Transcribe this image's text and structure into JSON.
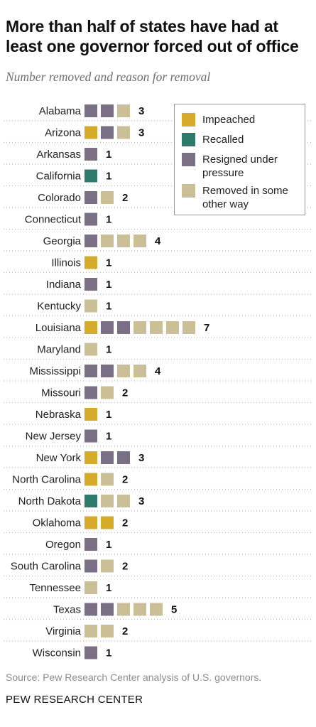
{
  "header": {
    "title": "More than half of states have had at least one governor forced out of office",
    "subtitle": "Number removed and reason for removal"
  },
  "footer": {
    "source": "Source: Pew Research Center analysis of U.S. governors.",
    "brand": "PEW RESEARCH CENTER"
  },
  "legend": {
    "items": [
      {
        "key": "impeached",
        "label": "Impeached"
      },
      {
        "key": "recalled",
        "label": "Recalled"
      },
      {
        "key": "resigned",
        "label": "Resigned under pressure"
      },
      {
        "key": "other",
        "label": "Removed in some other way"
      }
    ]
  },
  "colors": {
    "impeached": "#d6ab2b",
    "recalled": "#2e7a6b",
    "resigned": "#7a6f85",
    "other": "#cbbf98"
  },
  "chart_data": {
    "type": "bar",
    "title": "More than half of states have had at least one governor forced out of office",
    "subtitle": "Number removed and reason for removal",
    "legend_position": "top-right",
    "series_names": [
      "Impeached",
      "Recalled",
      "Resigned under pressure",
      "Removed in some other way"
    ],
    "rows": [
      {
        "state": "Alabama",
        "impeached": 0,
        "recalled": 0,
        "resigned": 2,
        "other": 1,
        "total": 3
      },
      {
        "state": "Arizona",
        "impeached": 1,
        "recalled": 0,
        "resigned": 1,
        "other": 1,
        "total": 3
      },
      {
        "state": "Arkansas",
        "impeached": 0,
        "recalled": 0,
        "resigned": 1,
        "other": 0,
        "total": 1
      },
      {
        "state": "California",
        "impeached": 0,
        "recalled": 1,
        "resigned": 0,
        "other": 0,
        "total": 1
      },
      {
        "state": "Colorado",
        "impeached": 0,
        "recalled": 0,
        "resigned": 1,
        "other": 1,
        "total": 2
      },
      {
        "state": "Connecticut",
        "impeached": 0,
        "recalled": 0,
        "resigned": 1,
        "other": 0,
        "total": 1
      },
      {
        "state": "Georgia",
        "impeached": 0,
        "recalled": 0,
        "resigned": 1,
        "other": 3,
        "total": 4
      },
      {
        "state": "Illinois",
        "impeached": 1,
        "recalled": 0,
        "resigned": 0,
        "other": 0,
        "total": 1
      },
      {
        "state": "Indiana",
        "impeached": 0,
        "recalled": 0,
        "resigned": 1,
        "other": 0,
        "total": 1
      },
      {
        "state": "Kentucky",
        "impeached": 0,
        "recalled": 0,
        "resigned": 0,
        "other": 1,
        "total": 1
      },
      {
        "state": "Louisiana",
        "impeached": 1,
        "recalled": 0,
        "resigned": 2,
        "other": 4,
        "total": 7
      },
      {
        "state": "Maryland",
        "impeached": 0,
        "recalled": 0,
        "resigned": 0,
        "other": 1,
        "total": 1
      },
      {
        "state": "Mississippi",
        "impeached": 0,
        "recalled": 0,
        "resigned": 2,
        "other": 2,
        "total": 4
      },
      {
        "state": "Missouri",
        "impeached": 0,
        "recalled": 0,
        "resigned": 1,
        "other": 1,
        "total": 2
      },
      {
        "state": "Nebraska",
        "impeached": 1,
        "recalled": 0,
        "resigned": 0,
        "other": 0,
        "total": 1
      },
      {
        "state": "New Jersey",
        "impeached": 0,
        "recalled": 0,
        "resigned": 1,
        "other": 0,
        "total": 1
      },
      {
        "state": "New York",
        "impeached": 1,
        "recalled": 0,
        "resigned": 2,
        "other": 0,
        "total": 3
      },
      {
        "state": "North Carolina",
        "impeached": 1,
        "recalled": 0,
        "resigned": 0,
        "other": 1,
        "total": 2
      },
      {
        "state": "North Dakota",
        "impeached": 0,
        "recalled": 1,
        "resigned": 0,
        "other": 2,
        "total": 3
      },
      {
        "state": "Oklahoma",
        "impeached": 2,
        "recalled": 0,
        "resigned": 0,
        "other": 0,
        "total": 2
      },
      {
        "state": "Oregon",
        "impeached": 0,
        "recalled": 0,
        "resigned": 1,
        "other": 0,
        "total": 1
      },
      {
        "state": "South Carolina",
        "impeached": 0,
        "recalled": 0,
        "resigned": 1,
        "other": 1,
        "total": 2
      },
      {
        "state": "Tennessee",
        "impeached": 0,
        "recalled": 0,
        "resigned": 0,
        "other": 1,
        "total": 1
      },
      {
        "state": "Texas",
        "impeached": 0,
        "recalled": 0,
        "resigned": 2,
        "other": 3,
        "total": 5
      },
      {
        "state": "Virginia",
        "impeached": 0,
        "recalled": 0,
        "resigned": 0,
        "other": 2,
        "total": 2
      },
      {
        "state": "Wisconsin",
        "impeached": 0,
        "recalled": 0,
        "resigned": 1,
        "other": 0,
        "total": 1
      }
    ]
  }
}
